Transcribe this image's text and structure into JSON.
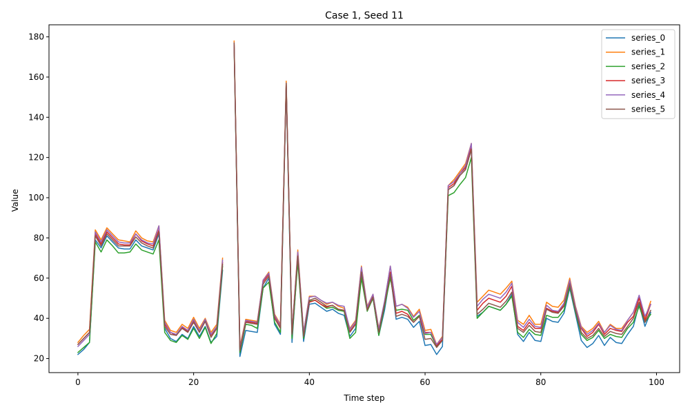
{
  "chart_data": {
    "type": "line",
    "title": "Case 1, Seed 11",
    "xlabel": "Time step",
    "ylabel": "Value",
    "xlim": [
      -5,
      104
    ],
    "ylim": [
      13,
      186
    ],
    "x_ticks": [
      0,
      20,
      40,
      60,
      80,
      100
    ],
    "y_ticks": [
      20,
      40,
      60,
      80,
      100,
      120,
      140,
      160,
      180
    ],
    "grid": false,
    "legend_position": "top-right",
    "x": [
      0,
      1,
      2,
      3,
      4,
      5,
      6,
      7,
      8,
      9,
      10,
      11,
      12,
      13,
      14,
      15,
      16,
      17,
      18,
      19,
      20,
      21,
      22,
      23,
      24,
      25,
      26,
      27,
      28,
      29,
      30,
      31,
      32,
      33,
      34,
      35,
      36,
      37,
      38,
      39,
      40,
      41,
      42,
      43,
      44,
      45,
      46,
      47,
      48,
      49,
      50,
      51,
      52,
      53,
      54,
      55,
      56,
      57,
      58,
      59,
      60,
      61,
      62,
      63,
      64,
      65,
      66,
      67,
      68,
      69,
      70,
      71,
      72,
      73,
      74,
      75,
      76,
      77,
      78,
      79,
      80,
      81,
      82,
      83,
      84,
      85,
      86,
      87,
      88,
      89,
      90,
      91,
      92,
      93,
      94,
      95,
      96,
      97,
      98,
      99
    ],
    "series": [
      {
        "name": "series_0",
        "color": "#1f77b4",
        "values": [
          22,
          24.5,
          28,
          79,
          75,
          81,
          78,
          75,
          74.5,
          74.5,
          79,
          76,
          75,
          74,
          82,
          35,
          30,
          28.5,
          32,
          30,
          36,
          31,
          36,
          28,
          31,
          64,
          null,
          176,
          21,
          34,
          33.5,
          33,
          55,
          60,
          37,
          32,
          155,
          28,
          70,
          28.5,
          47,
          47.5,
          45.5,
          43.5,
          44.5,
          42.5,
          41.5,
          31,
          35,
          61,
          44,
          50,
          31.5,
          44,
          62,
          39.5,
          40.5,
          39.5,
          35.5,
          38.5,
          26.5,
          27,
          22,
          26,
          104,
          106,
          111,
          114,
          124,
          41,
          43,
          46,
          45,
          44,
          47,
          52,
          32,
          28.5,
          33,
          29,
          28.5,
          40,
          38.5,
          38,
          42.5,
          55,
          42,
          29,
          25.5,
          27.5,
          31.5,
          26.5,
          30.5,
          28,
          27.5,
          32,
          36,
          47,
          36,
          43
        ]
      },
      {
        "name": "series_1",
        "color": "#ff7f0e",
        "values": [
          28,
          31.5,
          34.5,
          84,
          79,
          85,
          82,
          79,
          78.5,
          78,
          83.5,
          80,
          78.5,
          78,
          86,
          39,
          34,
          33,
          37,
          35,
          40.5,
          35,
          40,
          33,
          37,
          70,
          null,
          178,
          26,
          39.5,
          39,
          38.5,
          59,
          63,
          42,
          37,
          158,
          33,
          74,
          33,
          51,
          51,
          49,
          47,
          48,
          46,
          45,
          35,
          39,
          66,
          46,
          52,
          35,
          48,
          66,
          46,
          47,
          45.5,
          41,
          44.5,
          34,
          34.5,
          27,
          31,
          106,
          109,
          113,
          117,
          127,
          48,
          51,
          54,
          53,
          52,
          55,
          58.5,
          39,
          37,
          41.5,
          37,
          37,
          48,
          46,
          45.5,
          49,
          60,
          46,
          36,
          33,
          35,
          38.5,
          33,
          37,
          35,
          35,
          39,
          43,
          51,
          40,
          48.5
        ]
      },
      {
        "name": "series_2",
        "color": "#2ca02c",
        "values": [
          23,
          25.5,
          28,
          78,
          73,
          79,
          76,
          72.5,
          72.5,
          73,
          77,
          74,
          73,
          72,
          79,
          33,
          29,
          28,
          31.5,
          29.5,
          35,
          30,
          35.5,
          27.5,
          32.5,
          66,
          null,
          175,
          23,
          37,
          36.5,
          35,
          55,
          58,
          38,
          33,
          156,
          30,
          68,
          30,
          48.5,
          49,
          47,
          45,
          45.5,
          44,
          43.5,
          30,
          33,
          60,
          43.5,
          50,
          31.5,
          46,
          60,
          44,
          44.5,
          44,
          39,
          41.5,
          32,
          32,
          26,
          29,
          101,
          102.5,
          106.5,
          110,
          120,
          40,
          43,
          46,
          45,
          44,
          47,
          51,
          33,
          30.5,
          34.5,
          32,
          31.5,
          41.5,
          40.5,
          40.5,
          44,
          56,
          43,
          32,
          29,
          30.5,
          34,
          30,
          32,
          31,
          30.5,
          35,
          38,
          46,
          38,
          42
        ]
      },
      {
        "name": "series_3",
        "color": "#d62728",
        "values": [
          27,
          30,
          33,
          82,
          77,
          83,
          80,
          77,
          76.5,
          76.5,
          82,
          78.5,
          77,
          76,
          84,
          37,
          33,
          31.5,
          35.5,
          33.5,
          39,
          33.5,
          39,
          31.5,
          35.5,
          68,
          null,
          176,
          25,
          38.5,
          38,
          37.5,
          58,
          62,
          41,
          36,
          156,
          33,
          72,
          32,
          48,
          49,
          47,
          45.5,
          46.5,
          44.5,
          44,
          33.5,
          37.5,
          64,
          45,
          51,
          34,
          47,
          63,
          42.5,
          43.5,
          42,
          38,
          41,
          33,
          33,
          26.5,
          29.5,
          105,
          107,
          112,
          115,
          125,
          44,
          47.5,
          50,
          49,
          48,
          51,
          56,
          36,
          34,
          38,
          35,
          35,
          45,
          43.5,
          43,
          46.5,
          58,
          45,
          35,
          31,
          33,
          37,
          32,
          35,
          34,
          33.5,
          38,
          41,
          50,
          39,
          47
        ]
      },
      {
        "name": "series_4",
        "color": "#9467bd",
        "values": [
          26,
          29,
          32,
          83,
          78,
          84,
          81,
          78,
          77.5,
          77.5,
          82,
          79,
          77.5,
          77,
          86,
          38,
          33,
          32,
          36,
          34,
          39.5,
          34,
          39.5,
          32,
          36,
          69,
          null,
          177,
          25,
          39,
          38.5,
          38,
          59,
          62.5,
          41.5,
          36.5,
          157,
          33,
          73,
          33,
          50.5,
          51,
          49,
          47.5,
          48,
          46.5,
          46,
          34.5,
          38.5,
          65.5,
          45.5,
          52,
          34.5,
          48.5,
          66,
          46,
          47,
          45,
          40.5,
          43.5,
          32.5,
          33,
          27,
          30.5,
          106,
          108,
          112,
          116,
          127,
          46,
          49.5,
          52,
          51,
          50,
          53,
          57.5,
          38,
          35.5,
          39.5,
          36,
          35.5,
          46.5,
          44,
          43.5,
          47.5,
          59,
          45.5,
          35.5,
          32,
          34,
          37.5,
          33,
          36.5,
          34.5,
          34,
          39,
          43,
          51.5,
          41,
          47
        ]
      },
      {
        "name": "series_5",
        "color": "#8c564b",
        "values": [
          27,
          30,
          33,
          81,
          76,
          82,
          79,
          76,
          76,
          76,
          80.5,
          77.5,
          76,
          75,
          83,
          36,
          32,
          31.5,
          35,
          33,
          38,
          33,
          38.5,
          30.5,
          35,
          67,
          null,
          177,
          24,
          38,
          37.5,
          37,
          57,
          61,
          40,
          35,
          157,
          32,
          71,
          31,
          49,
          50,
          48,
          46,
          46.5,
          44.5,
          44,
          33,
          37,
          63,
          44,
          50.5,
          33,
          47,
          62,
          41,
          42,
          41,
          38,
          41,
          29.5,
          30,
          25.5,
          29,
          104,
          106,
          111,
          114,
          124,
          42,
          44.5,
          47.5,
          46.5,
          45.5,
          48.5,
          53,
          35,
          33,
          36.5,
          33.5,
          33,
          44.5,
          43,
          42.5,
          46,
          57,
          44,
          33,
          30,
          31.5,
          35,
          31,
          33.5,
          32.5,
          32,
          36,
          40,
          48,
          38,
          44
        ]
      }
    ]
  }
}
